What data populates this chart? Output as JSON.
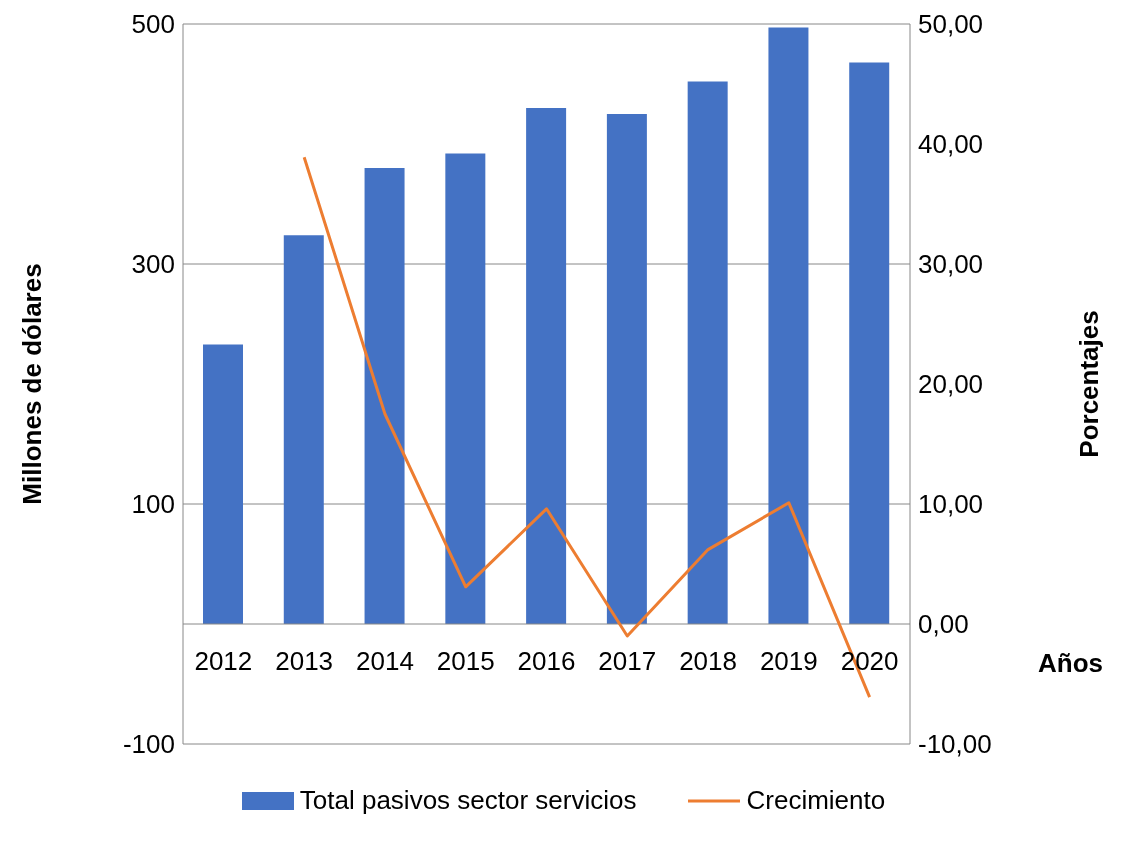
{
  "chart_data": {
    "type": "bar",
    "categories": [
      "2012",
      "2013",
      "2014",
      "2015",
      "2016",
      "2017",
      "2018",
      "2019",
      "2020"
    ],
    "series": [
      {
        "name": "Total pasivos sector servicios",
        "color": "#4472c4",
        "values": [
          233,
          324,
          380,
          392,
          430,
          425,
          452,
          497,
          468
        ]
      },
      {
        "name": "Crecimiento",
        "type": "line",
        "axis": "y2",
        "color": "#ed7d31",
        "values": [
          null,
          38.9,
          17.5,
          3.1,
          9.6,
          -1.0,
          6.2,
          10.1,
          -6.1
        ]
      }
    ],
    "xlabel": "Años",
    "ylabel": "Millones de dólares",
    "y2label": "Porcentajes",
    "ylim": [
      -100,
      500
    ],
    "yticks": [
      -100,
      100,
      300,
      500
    ],
    "y2lim": [
      -10,
      50
    ],
    "y2ticks": [
      {
        "value": -10,
        "label": "-10,00"
      },
      {
        "value": 0,
        "label": "0,00"
      },
      {
        "value": 10,
        "label": "10,00"
      },
      {
        "value": 20,
        "label": "20,00"
      },
      {
        "value": 30,
        "label": "30,00"
      },
      {
        "value": 40,
        "label": "40,00"
      },
      {
        "value": 50,
        "label": "50,00"
      }
    ],
    "grid": "y",
    "legend": "bottom",
    "marker": "none",
    "line_style": "solid"
  }
}
